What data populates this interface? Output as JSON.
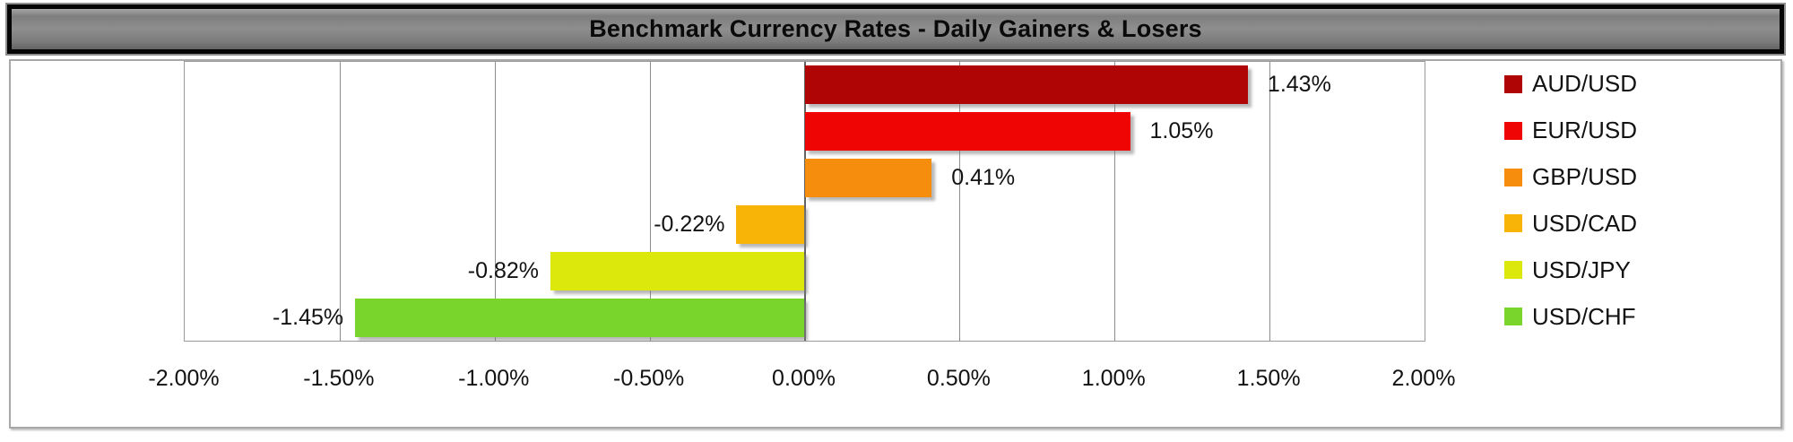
{
  "title": "Benchmark Currency Rates - Daily Gainers & Losers",
  "chart_data": {
    "type": "bar",
    "orientation": "horizontal",
    "title": "Benchmark Currency Rates - Daily Gainers & Losers",
    "categories": [
      "AUD/USD",
      "EUR/USD",
      "GBP/USD",
      "USD/CAD",
      "USD/JPY",
      "USD/CHF"
    ],
    "values": [
      1.43,
      1.05,
      0.41,
      -0.22,
      -0.82,
      -1.45
    ],
    "data_labels": [
      "1.43%",
      "1.05%",
      "0.41%",
      "-0.22%",
      "-0.82%",
      "-1.45%"
    ],
    "bar_colors": [
      "#b00505",
      "#f00505",
      "#f78d0c",
      "#f9b408",
      "#dce70b",
      "#79d42b"
    ],
    "xlabel": "",
    "ylabel": "",
    "xlim": [
      -2.0,
      2.0
    ],
    "x_ticks": [
      -2.0,
      -1.5,
      -1.0,
      -0.5,
      0.0,
      0.5,
      1.0,
      1.5,
      2.0
    ],
    "x_tick_labels": [
      "-2.00%",
      "-1.50%",
      "-1.00%",
      "-0.50%",
      "0.00%",
      "0.50%",
      "1.00%",
      "1.50%",
      "2.00%"
    ],
    "grid": true,
    "legend_position": "right",
    "legend": [
      {
        "label": "AUD/USD",
        "color": "#b00505"
      },
      {
        "label": "EUR/USD",
        "color": "#f00505"
      },
      {
        "label": "GBP/USD",
        "color": "#f78d0c"
      },
      {
        "label": "USD/CAD",
        "color": "#f9b408"
      },
      {
        "label": "USD/JPY",
        "color": "#dce70b"
      },
      {
        "label": "USD/CHF",
        "color": "#79d42b"
      }
    ]
  },
  "style": {
    "banner_background": "#848484",
    "banner_border": "#000000",
    "gridline_color": "#8c8c8c",
    "zero_line_color": "#636363",
    "plot_border_color": "#9a9a9a",
    "chart_border_color": "#a8a8a8",
    "text_color": "#121212"
  }
}
